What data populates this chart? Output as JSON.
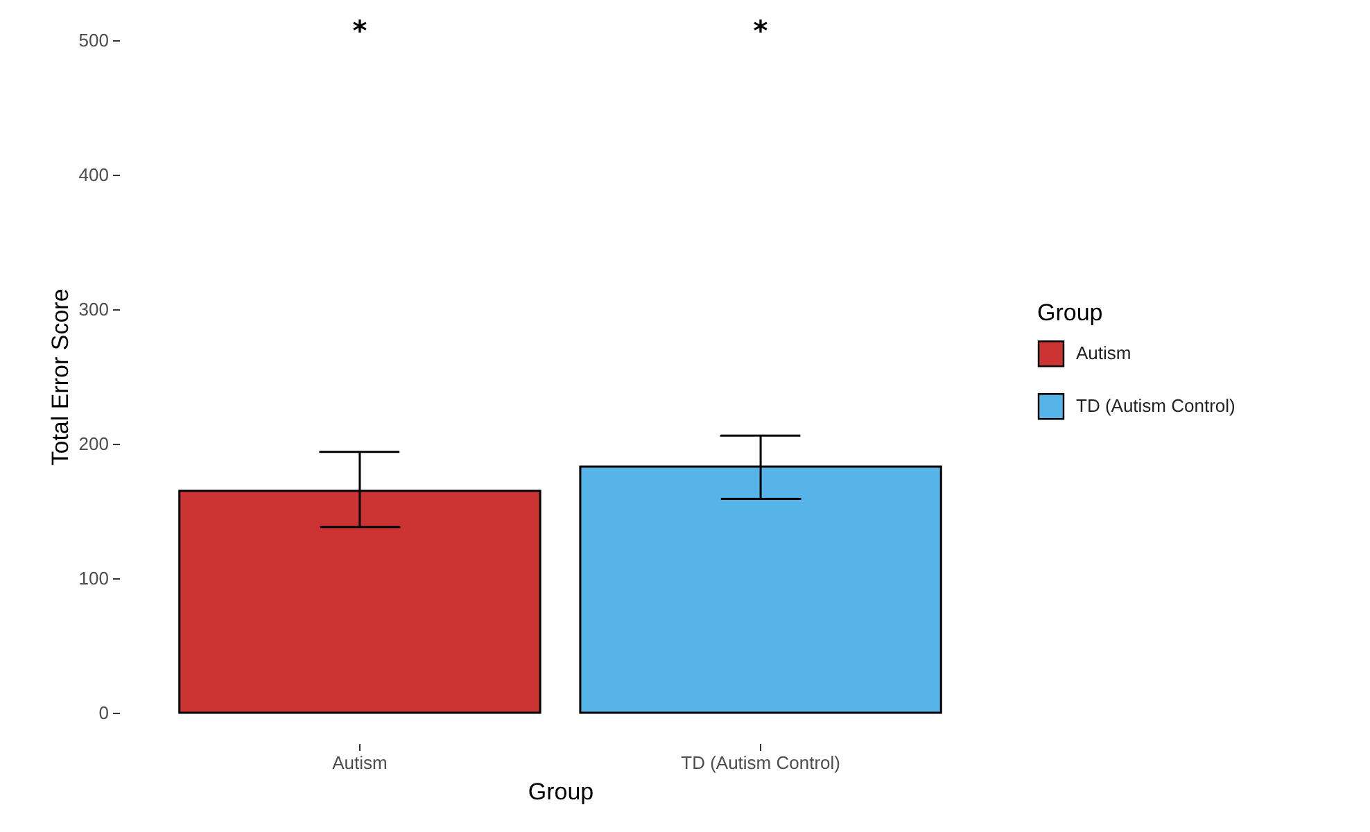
{
  "chart_data": {
    "type": "bar",
    "xlabel": "Group",
    "ylabel": "Total Error Score",
    "legend_title": "Group",
    "categories": [
      "Autism",
      "TD (Autism Control)"
    ],
    "series": [
      {
        "name": "Autism",
        "color": "#cc3333",
        "values": [
          165,
          null
        ],
        "errors": [
          [
            138,
            194
          ],
          null
        ]
      },
      {
        "name": "TD (Autism Control)",
        "color": "#56b4e9",
        "values": [
          null,
          183
        ],
        "errors": [
          null,
          [
            159,
            206
          ]
        ]
      }
    ],
    "ylim": [
      0,
      500
    ],
    "yticks": [
      0,
      100,
      200,
      300,
      400,
      500
    ],
    "legend": "right",
    "annotations": [
      "*",
      "*"
    ]
  }
}
